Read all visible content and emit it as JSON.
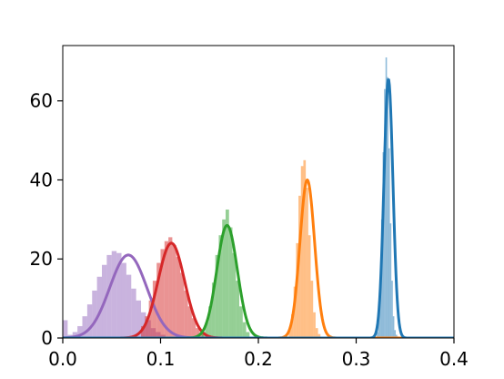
{
  "chart_data": {
    "type": "histogram",
    "title": "",
    "xlabel": "",
    "ylabel": "",
    "xlim": [
      0.0,
      0.4
    ],
    "ylim": [
      0,
      74
    ],
    "grid": false,
    "legend": "none",
    "x_ticks": [
      {
        "value": 0.0,
        "label": "0.0"
      },
      {
        "value": 0.1,
        "label": "0.1"
      },
      {
        "value": 0.2,
        "label": "0.2"
      },
      {
        "value": 0.3,
        "label": "0.3"
      },
      {
        "value": 0.4,
        "label": "0.4"
      }
    ],
    "y_ticks": [
      {
        "value": 0,
        "label": "0"
      },
      {
        "value": 20,
        "label": "20"
      },
      {
        "value": 40,
        "label": "40"
      },
      {
        "value": 60,
        "label": "60"
      }
    ],
    "series": [
      {
        "color": "#9467bd",
        "fit": {
          "mean": 0.067,
          "peak": 21.0,
          "sd": 0.019
        },
        "bins": {
          "start": 0.0,
          "width": 0.005,
          "values": [
            4.5,
            0.8,
            1.5,
            3.0,
            5.5,
            8.5,
            12.0,
            15.5,
            18.5,
            21.0,
            22.0,
            21.5,
            19.0,
            16.0,
            12.5,
            9.5,
            6.5,
            4.5,
            2.5,
            1.5,
            0.8
          ]
        }
      },
      {
        "color": "#d62728",
        "fit": {
          "mean": 0.111,
          "peak": 24.0,
          "sd": 0.0135
        },
        "bins": {
          "start": 0.08,
          "width": 0.004,
          "values": [
            3.0,
            5.5,
            9.5,
            14.5,
            19.0,
            22.5,
            24.5,
            25.5,
            23.5,
            20.5,
            16.5,
            12.0,
            8.0,
            5.0,
            2.5,
            1.0
          ]
        }
      },
      {
        "color": "#2ca02c",
        "fit": {
          "mean": 0.168,
          "peak": 28.5,
          "sd": 0.0105
        },
        "bins": {
          "start": 0.142,
          "width": 0.0035,
          "values": [
            1.5,
            4.0,
            8.0,
            14.0,
            21.0,
            26.0,
            30.0,
            32.5,
            28.0,
            21.5,
            14.5,
            8.0,
            4.0,
            1.5
          ]
        }
      },
      {
        "color": "#ff7f0e",
        "fit": {
          "mean": 0.25,
          "peak": 40.0,
          "sd": 0.0075
        },
        "bins": {
          "start": 0.231,
          "width": 0.0025,
          "values": [
            2.0,
            6.0,
            13.0,
            24.0,
            36.0,
            43.5,
            45.0,
            38.0,
            26.0,
            14.5,
            6.5,
            2.5,
            1.0
          ]
        }
      },
      {
        "color": "#1f77b4",
        "fit": {
          "mean": 0.333,
          "peak": 65.5,
          "sd": 0.0046
        },
        "bins": {
          "start": 0.321,
          "width": 0.0015,
          "values": [
            1.5,
            6.0,
            15.0,
            30.0,
            47.0,
            63.0,
            71.0,
            66.0,
            48.0,
            29.0,
            14.5,
            5.5,
            2.0,
            0.8,
            0.4,
            0.2
          ]
        }
      }
    ]
  }
}
